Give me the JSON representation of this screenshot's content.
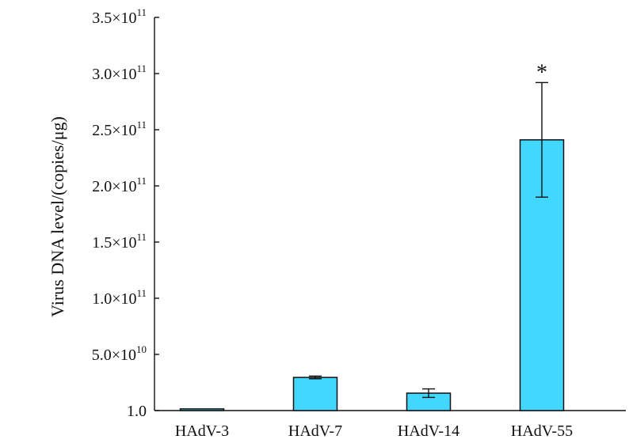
{
  "chart_data": {
    "type": "bar",
    "title": "",
    "xlabel": "",
    "ylabel": "Virus DNA level/(copies/μg)",
    "categories": [
      "HAdV-3",
      "HAdV-7",
      "HAdV-14",
      "HAdV-55"
    ],
    "series": [
      {
        "values": [
          1500000000,
          29500000000,
          15500000000,
          241000000000
        ],
        "errors": [
          0,
          1200000000,
          3800000000,
          51000000000
        ],
        "color": "#42D7FF"
      }
    ],
    "ylim": [
      1,
      350000000000
    ],
    "yticks": [
      {
        "value": 1,
        "mantissa": "1.0",
        "exponent": ""
      },
      {
        "value": 50000000000,
        "mantissa": "5.0×10",
        "exponent": "10"
      },
      {
        "value": 100000000000,
        "mantissa": "1.0×10",
        "exponent": "11"
      },
      {
        "value": 150000000000,
        "mantissa": "1.5×10",
        "exponent": "11"
      },
      {
        "value": 200000000000,
        "mantissa": "2.0×10",
        "exponent": "11"
      },
      {
        "value": 250000000000,
        "mantissa": "2.5×10",
        "exponent": "11"
      },
      {
        "value": 300000000000,
        "mantissa": "3.0×10",
        "exponent": "11"
      },
      {
        "value": 350000000000,
        "mantissa": "3.5×10",
        "exponent": "11"
      }
    ],
    "annotations": [
      {
        "category": "HAdV-55",
        "text": "*"
      }
    ],
    "grid": false,
    "legend": "none"
  }
}
